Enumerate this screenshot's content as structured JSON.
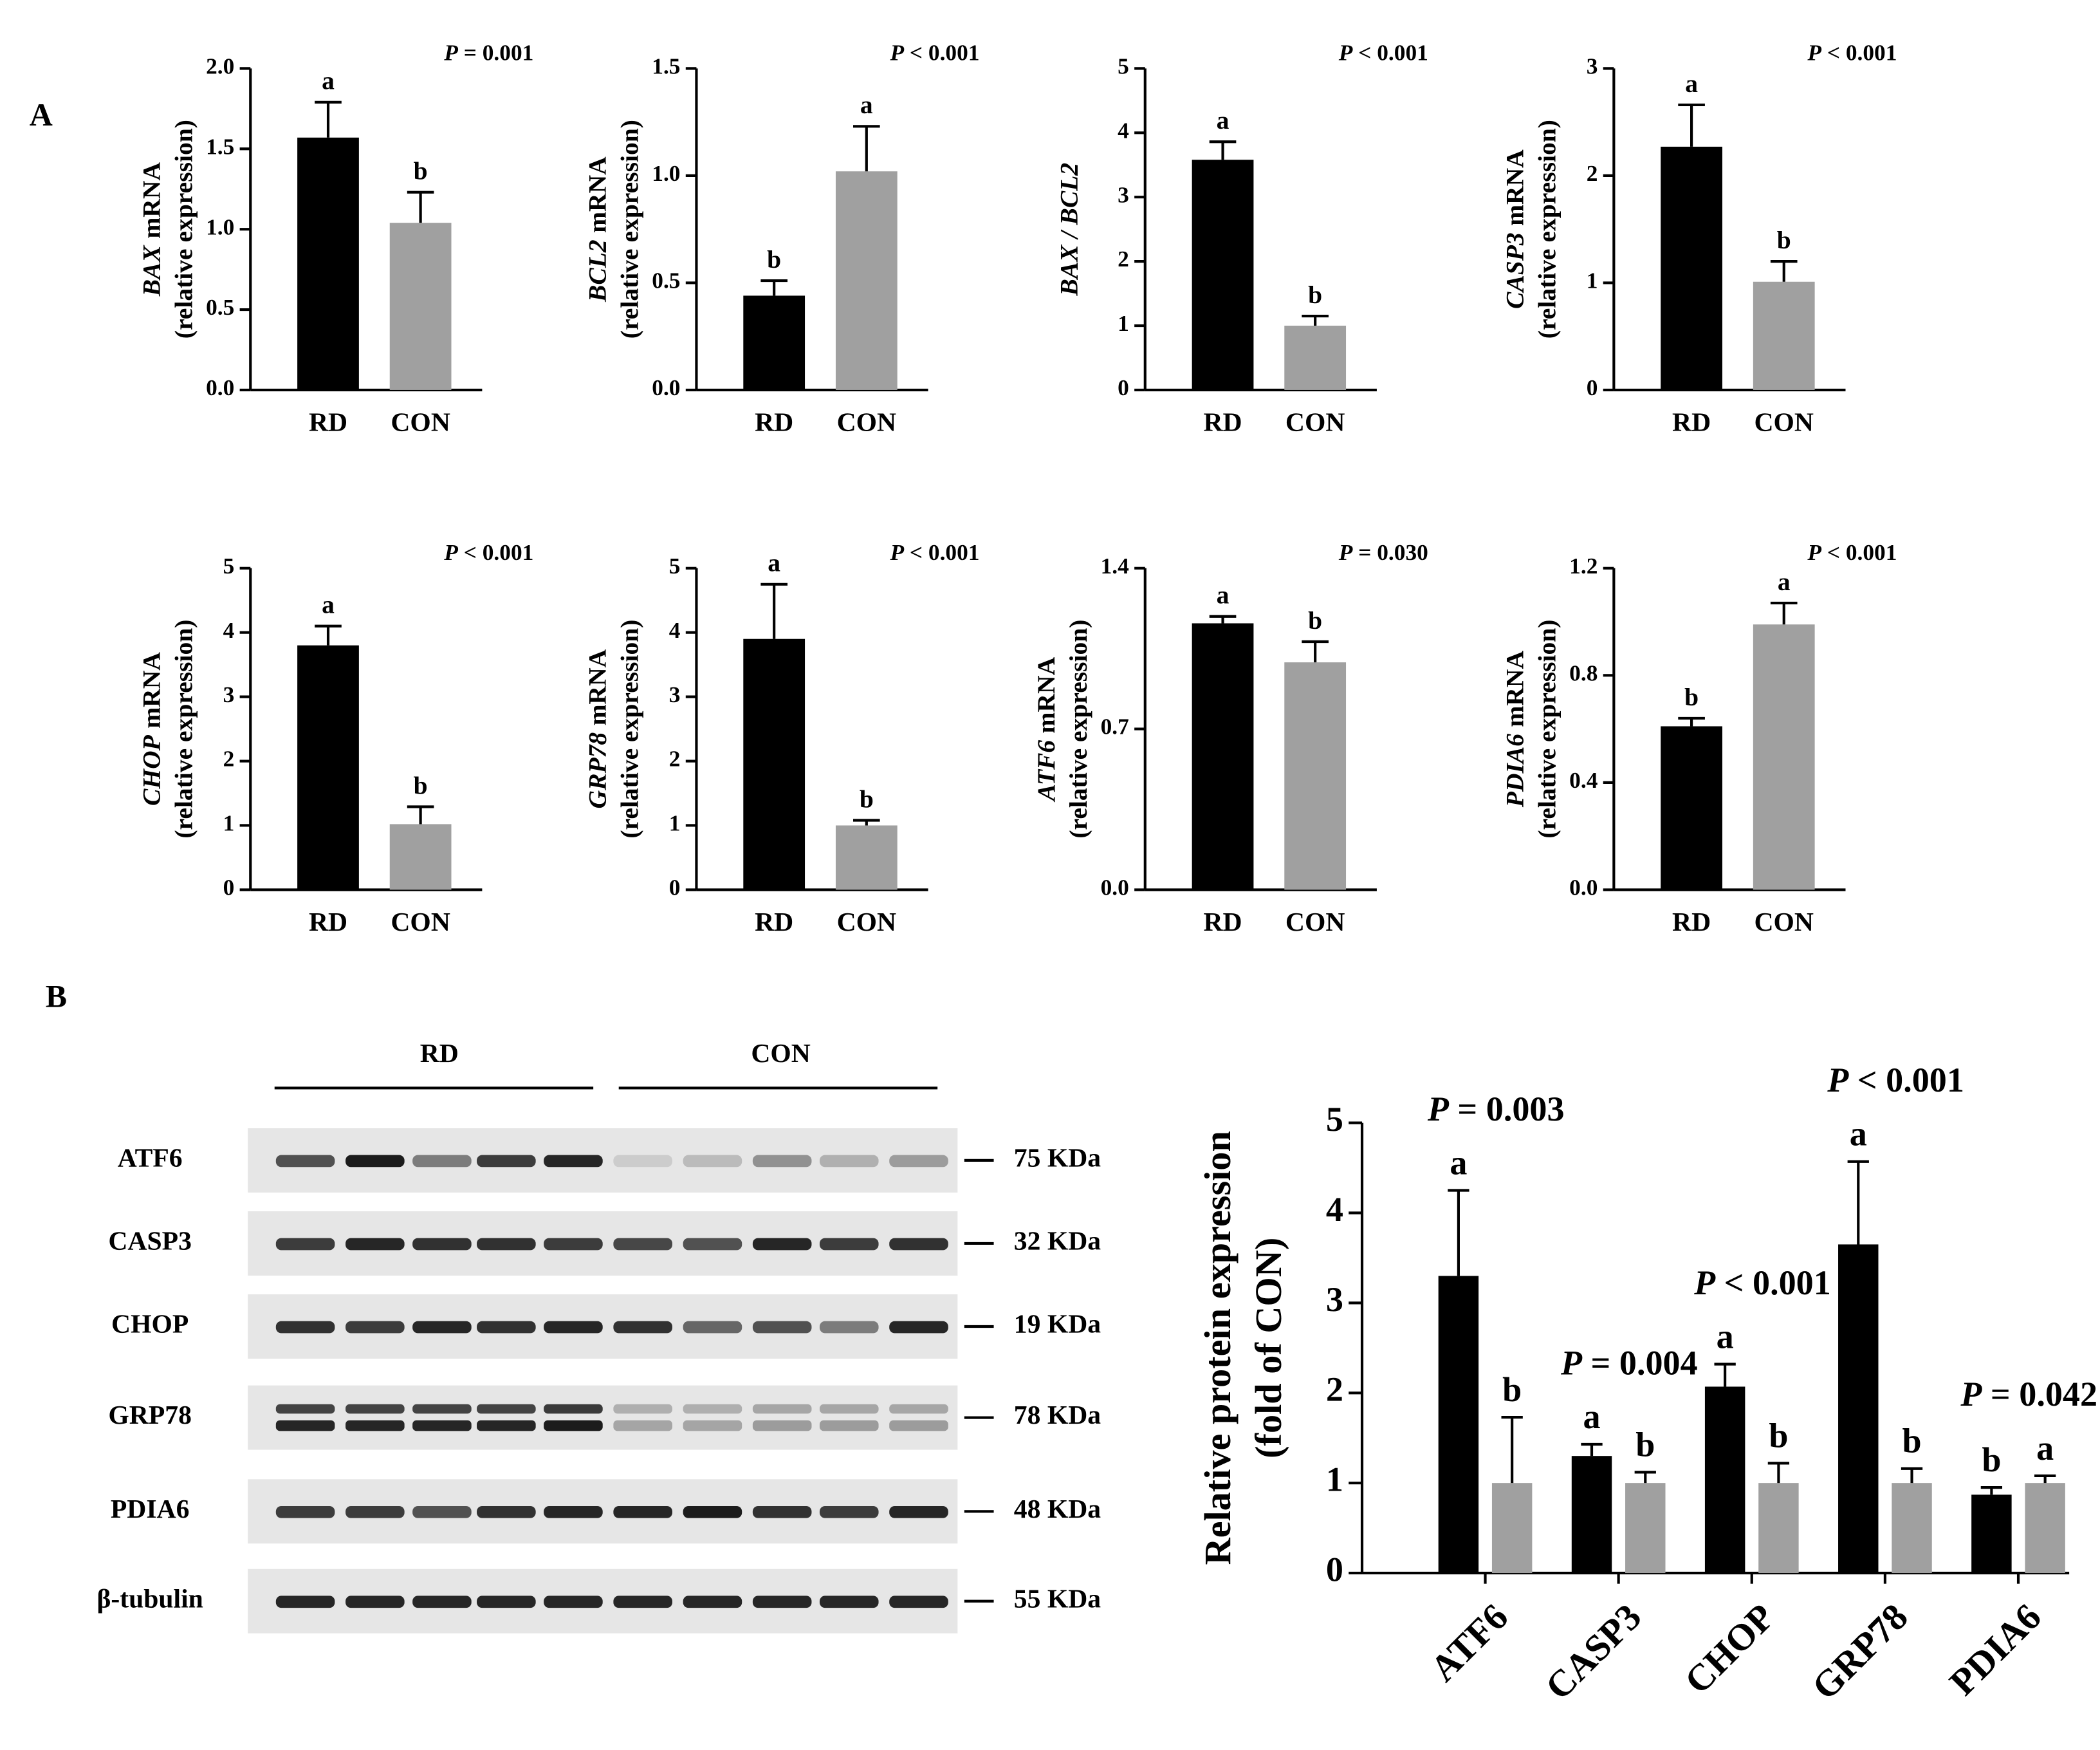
{
  "panels": [
    "A",
    "B"
  ],
  "blot": {
    "group_labels": [
      "RD",
      "CON"
    ],
    "proteins": [
      "ATF6",
      "CASP3",
      "CHOP",
      "GRP78",
      "PDIA6",
      "β-tubulin"
    ],
    "sizes": [
      "75 KDa",
      "32 KDa",
      "19 KDa",
      "78 KDa",
      "48 KDa",
      "55 KDa"
    ]
  },
  "chart_data": [
    {
      "type": "bar",
      "ylabel_gene": "BAX",
      "ylabel_unit": "mRNA",
      "ylabel_sub": "(relative expression)",
      "annotation": {
        "symbol": "P",
        "text": "= 0.001"
      },
      "categories": [
        "RD",
        "CON"
      ],
      "values": [
        1.57,
        1.04
      ],
      "errors": [
        0.22,
        0.19
      ],
      "letters": [
        "a",
        "b"
      ],
      "colors": [
        "#000000",
        "#a0a0a0"
      ],
      "ylim": [
        0,
        2
      ],
      "yticks": [
        {
          "value": 0,
          "label": "0.0"
        },
        0.5,
        {
          "value": 1,
          "label": "1.0"
        },
        1.5,
        {
          "value": 2,
          "label": "2.0"
        }
      ]
    },
    {
      "type": "bar",
      "ylabel_gene": "BCL2",
      "ylabel_unit": "mRNA",
      "ylabel_sub": "(relative expression)",
      "annotation": {
        "symbol": "P",
        "text": "< 0.001"
      },
      "categories": [
        "RD",
        "CON"
      ],
      "values": [
        0.44,
        1.02
      ],
      "errors": [
        0.07,
        0.21
      ],
      "letters": [
        "b",
        "a"
      ],
      "colors": [
        "#000000",
        "#a0a0a0"
      ],
      "ylim": [
        0,
        1.5
      ],
      "yticks": [
        {
          "value": 0,
          "label": "0.0"
        },
        0.5,
        {
          "value": 1,
          "label": "1.0"
        },
        1.5
      ]
    },
    {
      "type": "bar",
      "ylabel_gene": "BAX / BCL2",
      "annotation": {
        "symbol": "P",
        "text": "< 0.001"
      },
      "categories": [
        "RD",
        "CON"
      ],
      "values": [
        3.58,
        1.0
      ],
      "errors": [
        0.28,
        0.15
      ],
      "letters": [
        "a",
        "b"
      ],
      "colors": [
        "#000000",
        "#a0a0a0"
      ],
      "ylim": [
        0,
        5
      ],
      "yticks": [
        0,
        1,
        2,
        3,
        4,
        5
      ]
    },
    {
      "type": "bar",
      "ylabel_gene": "CASP3",
      "ylabel_unit": "mRNA",
      "ylabel_sub": "(relative expression)",
      "annotation": {
        "symbol": "P",
        "text": "< 0.001"
      },
      "categories": [
        "RD",
        "CON"
      ],
      "values": [
        2.27,
        1.01
      ],
      "errors": [
        0.39,
        0.19
      ],
      "letters": [
        "a",
        "b"
      ],
      "colors": [
        "#000000",
        "#a0a0a0"
      ],
      "ylim": [
        0,
        3
      ],
      "yticks": [
        0,
        1,
        2,
        3
      ]
    },
    {
      "type": "bar",
      "ylabel_gene": "CHOP",
      "ylabel_unit": "mRNA",
      "ylabel_sub": "(relative expression)",
      "annotation": {
        "symbol": "P",
        "text": "< 0.001"
      },
      "categories": [
        "RD",
        "CON"
      ],
      "values": [
        3.8,
        1.02
      ],
      "errors": [
        0.3,
        0.27
      ],
      "letters": [
        "a",
        "b"
      ],
      "colors": [
        "#000000",
        "#a0a0a0"
      ],
      "ylim": [
        0,
        5
      ],
      "yticks": [
        0,
        1,
        2,
        3,
        4,
        5
      ]
    },
    {
      "type": "bar",
      "ylabel_gene": "GRP78",
      "ylabel_unit": "mRNA",
      "ylabel_sub": "(relative expression)",
      "annotation": {
        "symbol": "P",
        "text": "< 0.001"
      },
      "categories": [
        "RD",
        "CON"
      ],
      "values": [
        3.9,
        1.0
      ],
      "errors": [
        0.85,
        0.08
      ],
      "letters": [
        "a",
        "b"
      ],
      "colors": [
        "#000000",
        "#a0a0a0"
      ],
      "ylim": [
        0,
        5
      ],
      "yticks": [
        0,
        1,
        2,
        3,
        4,
        5
      ]
    },
    {
      "type": "bar",
      "ylabel_gene": "ATF6",
      "ylabel_unit": "mRNA",
      "ylabel_sub": "(relative expression)",
      "annotation": {
        "symbol": "P",
        "text": "= 0.030"
      },
      "categories": [
        "RD",
        "CON"
      ],
      "values": [
        1.16,
        0.99
      ],
      "errors": [
        0.03,
        0.09
      ],
      "letters": [
        "a",
        "b"
      ],
      "colors": [
        "#000000",
        "#a0a0a0"
      ],
      "ylim": [
        0,
        1.4
      ],
      "yticks": [
        {
          "value": 0,
          "label": "0.0"
        },
        0.7,
        1.4
      ]
    },
    {
      "type": "bar",
      "ylabel_gene": "PDIA6",
      "ylabel_unit": "mRNA",
      "ylabel_sub": "(relative expression)",
      "annotation": {
        "symbol": "P",
        "text": "< 0.001"
      },
      "categories": [
        "RD",
        "CON"
      ],
      "values": [
        0.61,
        0.99
      ],
      "errors": [
        0.03,
        0.08
      ],
      "letters": [
        "b",
        "a"
      ],
      "colors": [
        "#000000",
        "#a0a0a0"
      ],
      "ylim": [
        0,
        1.2
      ],
      "yticks": [
        {
          "value": 0,
          "label": "0.0"
        },
        0.4,
        0.8,
        1.2
      ]
    },
    {
      "type": "bar",
      "ylabel": [
        "Relative protein expression",
        "(fold of CON)"
      ],
      "categories": [
        "ATF6",
        "CASP3",
        "CHOP",
        "GRP78",
        "PDIA6"
      ],
      "annotations": [
        {
          "symbol": "P",
          "text": "= 0.003"
        },
        {
          "symbol": "P",
          "text": "= 0.004"
        },
        {
          "symbol": "P",
          "text": "< 0.001"
        },
        {
          "symbol": "P",
          "text": "< 0.001"
        },
        {
          "symbol": "P",
          "text": "= 0.042"
        }
      ],
      "series": [
        {
          "color": "#000000",
          "values": [
            3.3,
            1.3,
            2.07,
            3.65,
            0.87
          ],
          "errors": [
            0.95,
            0.13,
            0.25,
            0.92,
            0.08
          ],
          "letters": [
            "a",
            "a",
            "a",
            "a",
            "b"
          ]
        },
        {
          "color": "#a0a0a0",
          "values": [
            1,
            1,
            1,
            1,
            1
          ],
          "errors": [
            0.73,
            0.12,
            0.22,
            0.16,
            0.08
          ],
          "letters": [
            "b",
            "b",
            "b",
            "b",
            "a"
          ]
        }
      ],
      "ylim": [
        0,
        5
      ],
      "yticks": [
        0,
        1,
        2,
        3,
        4,
        5
      ]
    }
  ]
}
